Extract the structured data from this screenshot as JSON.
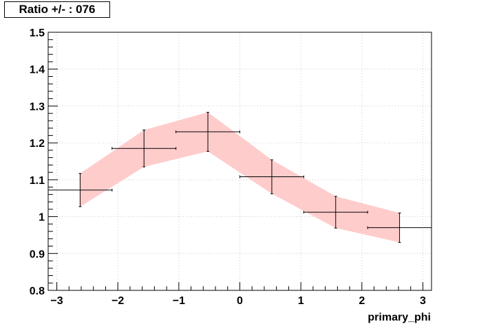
{
  "chart_data": {
    "type": "line",
    "title": "Ratio +/- : 076",
    "xlabel": "primary_phi",
    "ylabel": "",
    "xlim": [
      -3.1416,
      3.1416
    ],
    "ylim": [
      0.8,
      1.5
    ],
    "grid": true,
    "x_ticks": [
      "−3",
      "−2",
      "−1",
      "0",
      "1",
      "2",
      "3"
    ],
    "y_ticks": [
      "0.8",
      "0.9",
      "1",
      "1.1",
      "1.2",
      "1.3",
      "1.4",
      "1.5"
    ],
    "band_color": "#ffcccc",
    "series": [
      {
        "x": [
          -2.618,
          -1.571,
          -0.524,
          0.524,
          1.571,
          2.618
        ],
        "y": [
          1.072,
          1.185,
          1.23,
          1.108,
          1.012,
          0.97
        ],
        "x_err": [
          0.524,
          0.524,
          0.524,
          0.524,
          0.524,
          0.524
        ],
        "y_err": [
          0.045,
          0.05,
          0.053,
          0.046,
          0.043,
          0.04
        ],
        "band_lo": [
          1.027,
          1.135,
          1.177,
          1.062,
          0.969,
          0.93
        ],
        "band_hi": [
          1.117,
          1.235,
          1.283,
          1.154,
          1.055,
          1.01
        ]
      }
    ]
  }
}
